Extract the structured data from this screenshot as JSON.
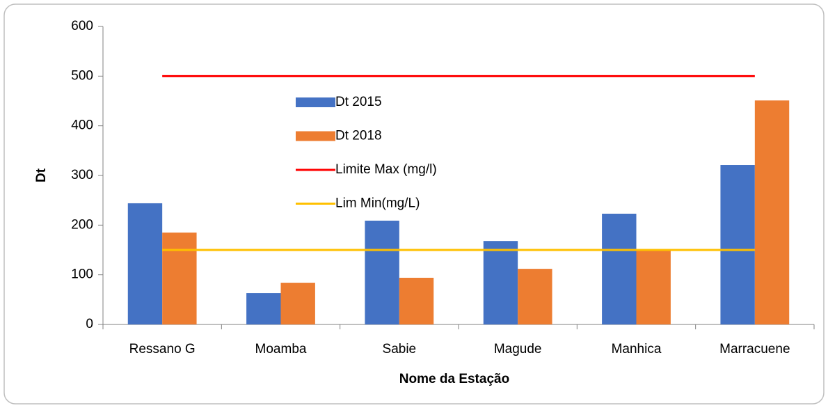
{
  "chart_data": {
    "type": "bar",
    "x_label": "Nome da Estação",
    "y_label": "Dt",
    "categories": [
      "Ressano G",
      "Moamba",
      "Sabie",
      "Magude",
      "Manhica",
      "Marracuene"
    ],
    "series": [
      {
        "name": "Dt 2015",
        "type": "bar",
        "color": "#4472c4",
        "values": [
          244,
          63,
          209,
          168,
          223,
          321
        ]
      },
      {
        "name": "Dt 2018",
        "type": "bar",
        "color": "#ed7d31",
        "values": [
          185,
          84,
          94,
          112,
          151,
          451
        ]
      },
      {
        "name": "Limite Max (mg/l)",
        "type": "line",
        "color": "#ff0000",
        "values": [
          500,
          500,
          500,
          500,
          500,
          500
        ]
      },
      {
        "name": "Lim Min(mg/L)",
        "type": "line",
        "color": "#ffc000",
        "values": [
          150,
          150,
          150,
          150,
          150,
          150
        ]
      }
    ],
    "ylim": [
      0,
      600
    ],
    "yticks": [
      0,
      100,
      200,
      300,
      400,
      500,
      600
    ],
    "grid": false,
    "legend": "inside"
  }
}
